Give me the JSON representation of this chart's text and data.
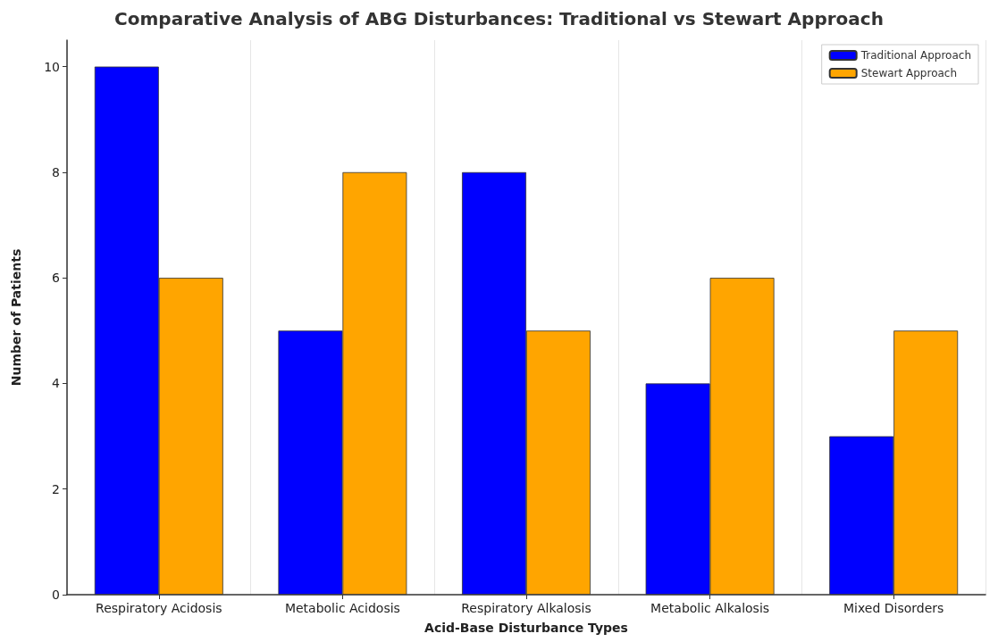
{
  "chart_data": {
    "type": "bar",
    "title": "Comparative Analysis of ABG Disturbances: Traditional vs Stewart Approach",
    "xlabel": "Acid-Base Disturbance Types",
    "ylabel": "Number of Patients",
    "categories": [
      "Respiratory Acidosis",
      "Metabolic Acidosis",
      "Respiratory Alkalosis",
      "Metabolic Alkalosis",
      "Mixed Disorders"
    ],
    "series": [
      {
        "name": "Traditional Approach",
        "color": "#0000ff",
        "values": [
          10,
          5,
          8,
          4,
          3
        ]
      },
      {
        "name": "Stewart Approach",
        "color": "#ffa500",
        "values": [
          6,
          8,
          5,
          6,
          5
        ]
      }
    ],
    "ylim": [
      0,
      10.5
    ],
    "yticks": [
      0,
      2,
      4,
      6,
      8,
      10
    ],
    "grid": "x",
    "legend": "top right"
  }
}
